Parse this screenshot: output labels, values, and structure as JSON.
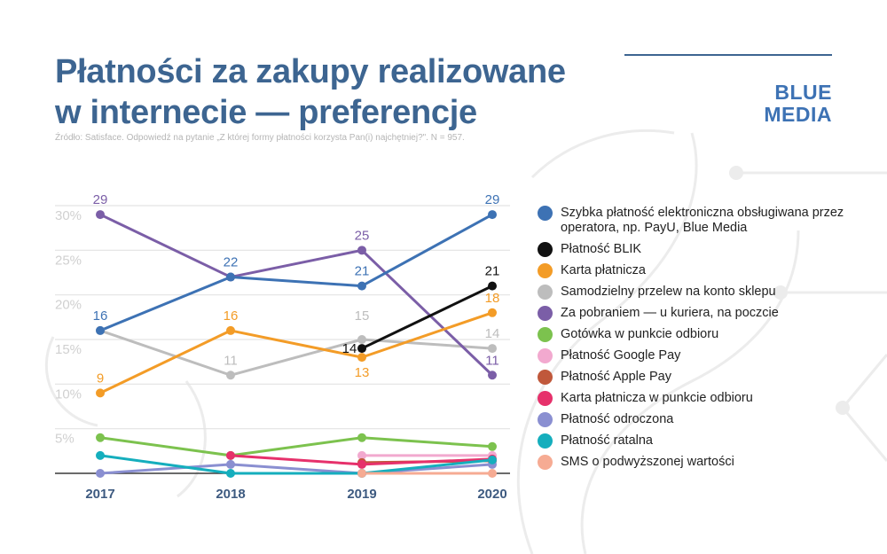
{
  "header": {
    "title_line1": "Płatności za zakupy realizowane",
    "title_line2": "w internecie — preferencje",
    "source": "Źródło: Satisface. Odpowiedź na pytanie „Z której formy płatności korzysta Pan(i) najchętniej?\". N = 957."
  },
  "brand": {
    "line1": "BLUE",
    "line2": "MEDIA"
  },
  "chart_data": {
    "type": "line",
    "x": [
      "2017",
      "2018",
      "2019",
      "2020"
    ],
    "ylim": [
      0,
      30
    ],
    "yticks": [
      "5%",
      "10%",
      "15%",
      "20%",
      "25%",
      "30%"
    ],
    "grid": true,
    "legend_position": "right",
    "series": [
      {
        "name": "Samodzielny przelew na konto sklepu",
        "color": "#bdbdbd",
        "values": [
          16,
          11,
          15,
          14
        ],
        "labels": [
          "",
          "11",
          "15",
          "14"
        ]
      },
      {
        "name": "Za pobraniem — u kuriera, na poczcie",
        "color": "#7b5ea7",
        "values": [
          29,
          22,
          25,
          11
        ],
        "labels": [
          "29",
          "",
          "25",
          "11"
        ]
      },
      {
        "name": "Szybka płatność elektroniczna obsługiwana przez operatora, np. PayU, Blue Media",
        "color": "#3d72b4",
        "values": [
          16,
          22,
          21,
          29
        ],
        "labels": [
          "16",
          "22",
          "21",
          "29"
        ]
      },
      {
        "name": "Karta płatnicza",
        "color": "#f39c27",
        "values": [
          9,
          16,
          13,
          18
        ],
        "labels": [
          "9",
          "16",
          "13",
          "18"
        ]
      },
      {
        "name": "Płatność BLIK",
        "color": "#111111",
        "values": [
          null,
          null,
          14,
          21
        ],
        "labels": [
          "",
          "",
          "14",
          "21"
        ]
      },
      {
        "name": "Gotówka w punkcie odbioru",
        "color": "#7cc24e",
        "values": [
          4,
          2,
          4,
          3
        ],
        "labels": [
          "",
          "",
          "",
          ""
        ]
      },
      {
        "name": "Płatność Google Pay",
        "color": "#f2a9cf",
        "values": [
          null,
          null,
          2,
          2
        ],
        "labels": [
          "",
          "",
          "",
          ""
        ]
      },
      {
        "name": "Płatność Apple Pay",
        "color": "#c0583b",
        "values": [
          null,
          null,
          1.2,
          1.4
        ],
        "labels": [
          "",
          "",
          "",
          ""
        ]
      },
      {
        "name": "Karta płatnicza w punkcie odbioru",
        "color": "#e6316b",
        "values": [
          null,
          2,
          1,
          1.6
        ],
        "labels": [
          "",
          "",
          "",
          ""
        ]
      },
      {
        "name": "Płatność odroczona",
        "color": "#8a8fd1",
        "values": [
          0,
          1,
          0,
          1
        ],
        "labels": [
          "",
          "",
          "",
          ""
        ]
      },
      {
        "name": "Płatność ratalna",
        "color": "#15aebd",
        "values": [
          2,
          0,
          0,
          1.5
        ],
        "labels": [
          "",
          "",
          "",
          ""
        ]
      },
      {
        "name": "SMS o podwyższonej wartości",
        "color": "#f6ab93",
        "values": [
          null,
          null,
          0,
          0
        ],
        "labels": [
          "",
          "",
          "",
          ""
        ]
      }
    ],
    "legend_order": [
      "Szybka płatność elektroniczna obsługiwana przez operatora, np. PayU, Blue Media",
      "Płatność BLIK",
      "Karta płatnicza",
      "Samodzielny przelew na konto sklepu",
      "Za pobraniem — u kuriera, na poczcie",
      "Gotówka w punkcie odbioru",
      "Płatność Google Pay",
      "Płatność Apple Pay",
      "Karta płatnicza w punkcie odbioru",
      "Płatność odroczona",
      "Płatność ratalna",
      "SMS o podwyższonej wartości"
    ]
  }
}
